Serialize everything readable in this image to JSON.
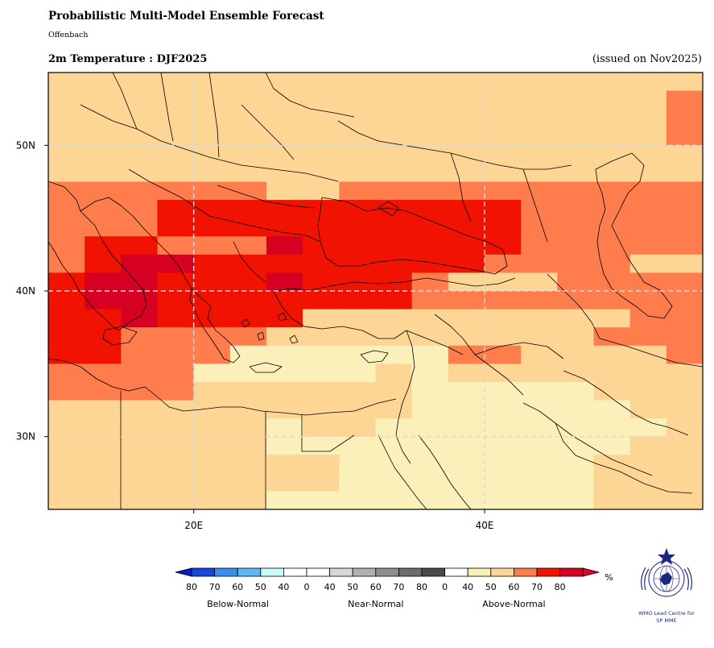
{
  "header": {
    "title": "Probabilistic Multi-Model Ensemble Forecast",
    "subtitle": "Offenbach",
    "variable_title": "2m Temperature : DJF2025",
    "issued": "(issued on Nov2025)"
  },
  "map": {
    "lon_range": [
      10,
      55
    ],
    "lat_range": [
      25,
      55
    ],
    "grid_step_deg": 2.5,
    "gridlines_lon": [
      20,
      40
    ],
    "gridlines_lat": [
      30,
      40,
      50
    ],
    "lon_labels": [
      "20E",
      "40E"
    ],
    "lat_labels": [
      "30N",
      "40N",
      "50N"
    ],
    "gridline_color": "#d9d9d9",
    "coastline_color": "#000000",
    "category_colors": {
      "A40": "#fbf0b9",
      "A50": "#fdd595",
      "A60": "#ff7c4c",
      "A70": "#f21202",
      "A80": "#d60022"
    },
    "rows": [
      "A50 A50 A50 A50 A50 A50 A50 A50 A50 A50 A50 A50 A50 A50 A50 A50 A50 A50",
      "A50 A50 A50 A50 A50 A50 A50 A50 A50 A50 A50 A50 A50 A50 A50 A50 A50 A60",
      "A50 A50 A50 A50 A50 A50 A50 A50 A50 A50 A50 A50 A50 A50 A50 A50 A50 A60",
      "A50 A50 A50 A50 A50 A50 A50 A50 A50 A50 A50 A50 A50 A50 A50 A50 A50 A60",
      "A50 A50 A50 A50 A50 A50 A50 A50 A50 A50 A50 A50 A50 A50 A50 A50 A50 A50",
      "A50 A50 A50 A50 A50 A50 A50 A50 A50 A50 A50 A50 A50 A50 A50 A50 A50 A50",
      "A60 A60 A60 A60 A60 A60 A50 A50 A60 A60 A60 A60 A60 A60 A60 A60 A60 A60",
      "A60 A60 A60 A70 A70 A70 A70 A70 A70 A70 A70 A70 A70 A60 A60 A60 A60 A60",
      "A60 A60 A60 A70 A70 A70 A70 A70 A70 A70 A70 A70 A70 A60 A60 A60 A60 A60",
      "A60 A70 A70 A60 A60 A60 A80 A70 A70 A70 A70 A70 A70 A60 A60 A60 A60 A60",
      "A60 A70 A80 A80 A70 A70 A70 A70 A70 A70 A70 A70 A60 A60 A60 A60 A50 A50",
      "A70 A80 A80 A70 A70 A70 A80 A70 A70 A70 A60 A50 A50 A50 A60 A60 A60 A60",
      "A70 A80 A80 A70 A70 A70 A70 A70 A70 A70 A60 A60 A60 A60 A60 A60 A60 A60",
      "A70 A70 A80 A70 A70 A70 A70 A50 A50 A50 A50 A50 A50 A50 A50 A50 A60 A60",
      "A70 A70 A60 A60 A60 A60 A50 A50 A50 A50 A50 A50 A50 A50 A50 A60 A60 A60",
      "A70 A70 A60 A60 A60 A40 A40 A40 A40 A40 A40 A60 A60 A50 A50 A50 A50 A60",
      "A60 A60 A60 A60 A40 A40 A40 A40 A40 A50 A40 A50 A50 A50 A50 A50 A50 A50",
      "A60 A60 A60 A60 A50 A50 A50 A50 A50 A50 A40 A40 A40 A40 A40 A50 A50 A50",
      "A50 A50 A50 A50 A50 A50 A50 A50 A50 A50 A40 A40 A40 A40 A40 A40 A50 A50",
      "A50 A50 A50 A50 A50 A50 A40 A50 A50 A40 A40 A40 A40 A40 A40 A40 A40 A50",
      "A50 A50 A50 A50 A50 A50 A40 A40 A40 A40 A40 A40 A40 A40 A40 A40 A50 A50",
      "A50 A50 A50 A50 A50 A50 A50 A50 A40 A40 A40 A40 A40 A40 A40 A50 A50 A50",
      "A50 A50 A50 A50 A50 A50 A50 A50 A40 A40 A40 A40 A40 A40 A40 A50 A50 A50",
      "A50 A50 A50 A50 A50 A50 A40 A40 A40 A40 A40 A40 A40 A40 A40 A50 A50 A50"
    ]
  },
  "colorbar": {
    "unit": "%",
    "below": {
      "label": "Below-Normal",
      "ticks": [
        "80",
        "70",
        "60",
        "50",
        "40"
      ],
      "colors": [
        "#1545e0",
        "#3b8ef0",
        "#62b6f6",
        "#c6fbf9",
        "#ffffff"
      ],
      "extend_color": "#0a18c8"
    },
    "near": {
      "label": "Near-Normal",
      "ticks": [
        "0",
        "40",
        "50",
        "60",
        "70",
        "80"
      ],
      "colors": [
        "#ffffff",
        "#d8d8d8",
        "#b0b0b0",
        "#8e8e8e",
        "#6c6c6c",
        "#4a4a4a"
      ]
    },
    "above": {
      "label": "Above-Normal",
      "ticks": [
        "0",
        "40",
        "50",
        "60",
        "70",
        "80"
      ],
      "colors": [
        "#ffffff",
        "#fbf0b9",
        "#fdd595",
        "#ff7c4c",
        "#f21202",
        "#d60022"
      ],
      "extend_color": "#e0002a"
    }
  },
  "logo": {
    "icon": "wmo-emblem-icon",
    "line1": "WMO Lead Centre for",
    "line2": "SP MME",
    "color": "#1b2a80"
  }
}
